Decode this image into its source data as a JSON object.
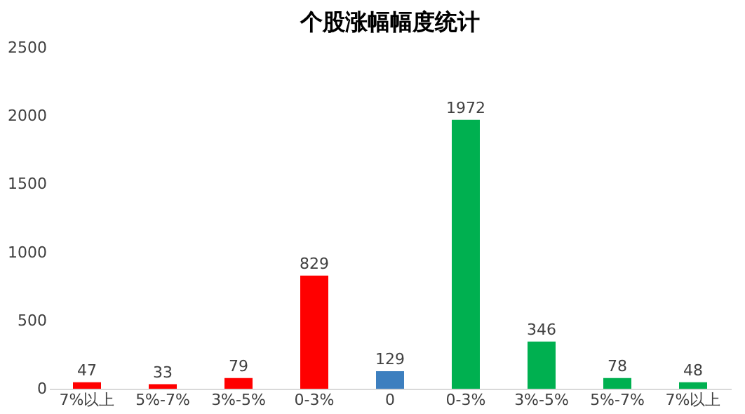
{
  "chart_data": {
    "type": "bar",
    "title": "个股涨幅幅度统计",
    "categories": [
      "7%以上",
      "5%-7%",
      "3%-5%",
      "0-3%",
      "0",
      "0-3%",
      "3%-5%",
      "5%-7%",
      "7%以上"
    ],
    "values": [
      47,
      33,
      79,
      829,
      129,
      1972,
      346,
      78,
      48
    ],
    "colors": [
      "#ff0000",
      "#ff0000",
      "#ff0000",
      "#ff0000",
      "#3d7fbf",
      "#00b050",
      "#00b050",
      "#00b050",
      "#00b050"
    ],
    "ylim": [
      0,
      2500
    ],
    "yticks": [
      0,
      500,
      1000,
      1500,
      2000,
      2500
    ],
    "grid": false,
    "data_labels": true
  }
}
